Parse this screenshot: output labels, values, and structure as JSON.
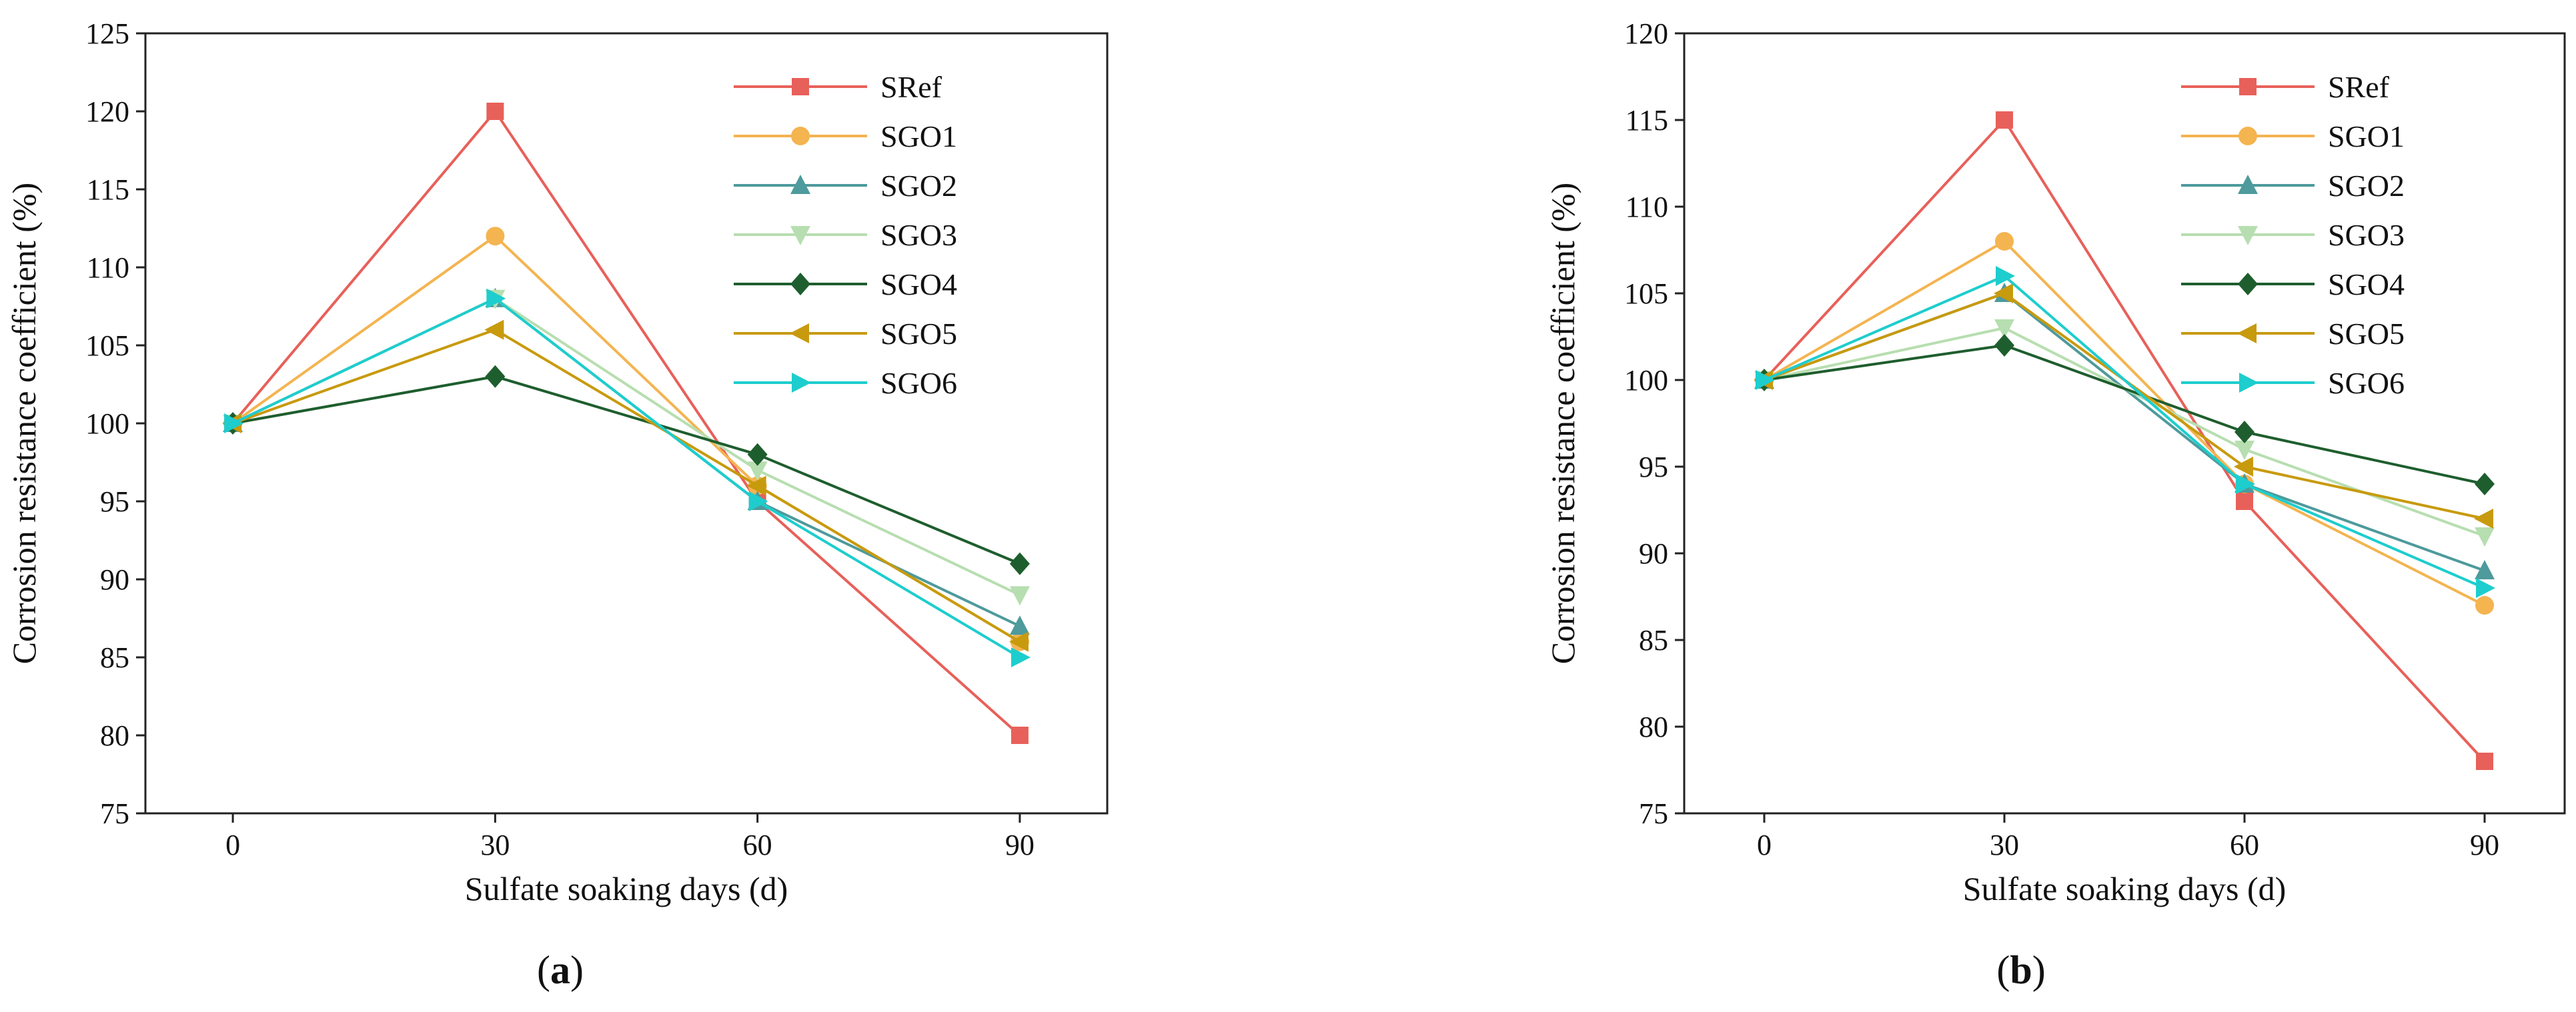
{
  "chart_data": [
    {
      "type": "line",
      "panel_label": "(a)",
      "panel_letter": "a",
      "x": [
        0,
        30,
        60,
        90
      ],
      "xticks": [
        "0",
        "30",
        "60",
        "90"
      ],
      "xlim": [
        -10,
        100
      ],
      "ylim": [
        75,
        125
      ],
      "yticks": [
        "75",
        "80",
        "85",
        "90",
        "95",
        "100",
        "105",
        "110",
        "115",
        "120",
        "125"
      ],
      "xlabel": "Sulfate soaking days (d)",
      "ylabel": "Corrosion resistance coefficient (%)",
      "legend_position": "top-right",
      "series": [
        {
          "name": "SRef",
          "values": [
            100,
            120,
            95,
            80
          ],
          "color": "#E8605A",
          "marker": "square"
        },
        {
          "name": "SGO1",
          "values": [
            100,
            112,
            96,
            86
          ],
          "color": "#F4B450",
          "marker": "circle"
        },
        {
          "name": "SGO2",
          "values": [
            100,
            108,
            95,
            87
          ],
          "color": "#4E9A9C",
          "marker": "triangle-up"
        },
        {
          "name": "SGO3",
          "values": [
            100,
            108,
            97,
            89
          ],
          "color": "#B7DEB0",
          "marker": "triangle-down"
        },
        {
          "name": "SGO4",
          "values": [
            100,
            103,
            98,
            91
          ],
          "color": "#1E5E2E",
          "marker": "diamond"
        },
        {
          "name": "SGO5",
          "values": [
            100,
            106,
            96,
            86
          ],
          "color": "#C89A0E",
          "marker": "triangle-left"
        },
        {
          "name": "SGO6",
          "values": [
            100,
            108,
            95,
            85
          ],
          "color": "#1ECDCD",
          "marker": "triangle-right"
        }
      ]
    },
    {
      "type": "line",
      "panel_label": "(b)",
      "panel_letter": "b",
      "x": [
        0,
        30,
        60,
        90
      ],
      "xticks": [
        "0",
        "30",
        "60",
        "90"
      ],
      "xlim": [
        -10,
        100
      ],
      "ylim": [
        75,
        120
      ],
      "yticks": [
        "75",
        "80",
        "85",
        "90",
        "95",
        "100",
        "105",
        "110",
        "115",
        "120"
      ],
      "xlabel": "Sulfate soaking days (d)",
      "ylabel": "Corrosion resistance coefficient (%)",
      "legend_position": "top-right",
      "series": [
        {
          "name": "SRef",
          "values": [
            100,
            115,
            93,
            78
          ],
          "color": "#E8605A",
          "marker": "square"
        },
        {
          "name": "SGO1",
          "values": [
            100,
            108,
            94,
            87
          ],
          "color": "#F4B450",
          "marker": "circle"
        },
        {
          "name": "SGO2",
          "values": [
            100,
            105,
            94,
            89
          ],
          "color": "#4E9A9C",
          "marker": "triangle-up"
        },
        {
          "name": "SGO3",
          "values": [
            100,
            103,
            96,
            91
          ],
          "color": "#B7DEB0",
          "marker": "triangle-down"
        },
        {
          "name": "SGO4",
          "values": [
            100,
            102,
            97,
            94
          ],
          "color": "#1E5E2E",
          "marker": "diamond"
        },
        {
          "name": "SGO5",
          "values": [
            100,
            105,
            95,
            92
          ],
          "color": "#C89A0E",
          "marker": "triangle-left"
        },
        {
          "name": "SGO6",
          "values": [
            100,
            106,
            94,
            88
          ],
          "color": "#1ECDCD",
          "marker": "triangle-right"
        }
      ]
    }
  ]
}
